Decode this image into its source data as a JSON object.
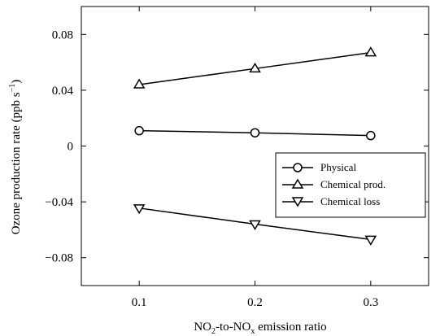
{
  "chart_data": {
    "type": "line",
    "title": "",
    "xlabel": {
      "main": "NO",
      "sub1": "2",
      "mid": "-to-NO",
      "sub2": "x",
      "tail": " emission ratio"
    },
    "ylabel": {
      "main": "Ozone production rate (ppb s",
      "sup": "−1",
      "tail": ")"
    },
    "x": [
      0.1,
      0.2,
      0.3
    ],
    "xlim": [
      0.05,
      0.35
    ],
    "ylim": [
      -0.1,
      0.1
    ],
    "xticks": [
      0.1,
      0.2,
      0.3
    ],
    "xtick_labels": [
      "0.1",
      "0.2",
      "0.3"
    ],
    "yticks": [
      0.08,
      0.04,
      0,
      -0.04,
      -0.08
    ],
    "ytick_labels": [
      "0.08",
      "0.04",
      "0",
      "−0.04",
      "−0.08"
    ],
    "grid": false,
    "legend_position": "right",
    "series": [
      {
        "name": "Physical",
        "marker": "circle",
        "values": [
          0.011,
          0.0095,
          0.0075
        ]
      },
      {
        "name": "Chemical prod.",
        "marker": "triangle-up",
        "values": [
          0.044,
          0.0555,
          0.067
        ]
      },
      {
        "name": "Chemical loss",
        "marker": "triangle-down",
        "values": [
          -0.0445,
          -0.056,
          -0.067
        ]
      }
    ]
  }
}
